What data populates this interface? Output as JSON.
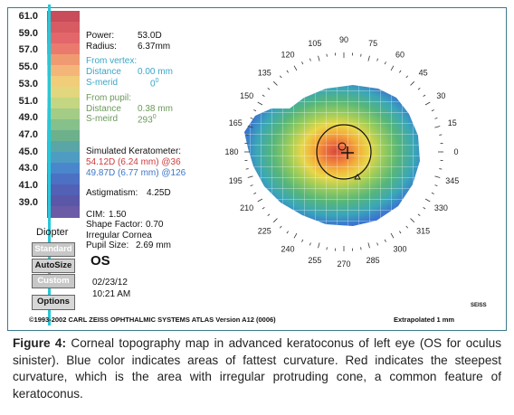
{
  "scale": {
    "ticks": [
      "61.0",
      "59.0",
      "57.0",
      "55.0",
      "53.0",
      "51.0",
      "49.0",
      "47.0",
      "45.0",
      "43.0",
      "41.0",
      "39.0"
    ],
    "unit_label": "Diopter",
    "colors": [
      "#c84c5a",
      "#d85a62",
      "#e2666a",
      "#ea7a6e",
      "#f09a72",
      "#f4b678",
      "#f1cd7a",
      "#e2d77e",
      "#c4d682",
      "#a3cc86",
      "#86c08a",
      "#6db18c",
      "#5aa6a6",
      "#4f9cc3",
      "#4a86cc",
      "#4b70c4",
      "#5260b6",
      "#5a57a8",
      "#6b5aa6"
    ]
  },
  "readout": {
    "power_label": "Power:",
    "power_value": "53.0D",
    "radius_label": "Radius:",
    "radius_value": "6.37mm",
    "vertex_heading": "From vertex:",
    "vertex_distance_label": "Distance",
    "vertex_distance_value": "0.00 mm",
    "vertex_smerid_label": "S-merid",
    "vertex_smerid_value": "0",
    "vertex_smerid_sup": "0",
    "pupil_heading": "From pupil:",
    "pupil_distance_label": "Distance",
    "pupil_distance_value": "0.38 mm",
    "pupil_smerid_label": "S-meird",
    "pupil_smerid_value": "293",
    "pupil_smerid_sup": "0",
    "simk_heading": "Simulated Keratometer:",
    "simk_line1": "54.12D (6.24 mm) @36",
    "simk_line2": "49.87D (6.77 mm) @126",
    "astig_label": "Astigmatism:",
    "astig_value": "4.25D",
    "cim_label": "CIM:",
    "cim_value": "1.50",
    "shape_label": "Shape Factor:",
    "shape_value": "0.70",
    "irregular_label": "Irregular Cornea",
    "pupil_size_label": "Pupil Size:",
    "pupil_size_value": "2.69 mm",
    "eye": "OS",
    "date": "02/23/12",
    "time": "10:21 AM"
  },
  "buttons": {
    "standard": "Standard",
    "autosize": "AutoSize",
    "custom": "Custom",
    "options": "Options"
  },
  "map": {
    "degree_labels": [
      "90",
      "105",
      "120",
      "135",
      "150",
      "165",
      "180",
      "195",
      "210",
      "225",
      "240",
      "255",
      "270",
      "285",
      "300",
      "315",
      "330",
      "345",
      "0",
      "15",
      "30",
      "45",
      "60",
      "75"
    ]
  },
  "footer": {
    "copyright": "©1993-2002 CARL ZEISS OPHTHALMIC SYSTEMS ATLAS Version A12 (0006)",
    "extrapolated": "Extrapolated 1 mm",
    "brand": "SEISS"
  },
  "caption": {
    "label": "Figure 4:",
    "text": " Corneal topography map in advanced keratoconus of left eye (OS for oculus sinister). Blue color indicates areas of fattest curvature.  Red indicates the steepest curvature, which is the area with irregular protruding cone, a common feature of keratoconus."
  }
}
